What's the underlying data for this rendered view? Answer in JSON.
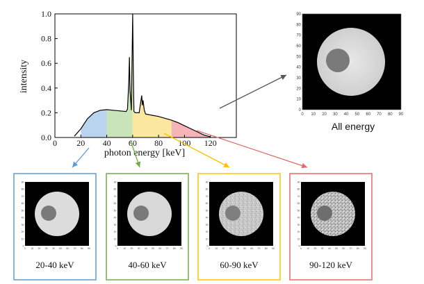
{
  "colors": {
    "band_20_40": "#b8d4ee",
    "band_40_60": "#c9e4b8",
    "band_60_90": "#fbe7a0",
    "band_90_120": "#f6b4b8",
    "box_20_40": "#5b9bd5",
    "box_40_60": "#70ad47",
    "box_60_90": "#ffc000",
    "box_90_120": "#e26a6a",
    "arrow_all": "#555555"
  },
  "chart_data": {
    "type": "area",
    "xlabel": "photon energy [keV]",
    "ylabel": "intensity",
    "xlim": [
      0,
      140
    ],
    "ylim": [
      0,
      1.0
    ],
    "xticks": [
      "0",
      "20",
      "40",
      "60",
      "80",
      "100",
      "120"
    ],
    "xtick_values": [
      0,
      20,
      40,
      60,
      80,
      100,
      120
    ],
    "yticks": [
      "0.0",
      "0.2",
      "0.4",
      "0.6",
      "0.8",
      "1.0"
    ],
    "ytick_values": [
      0,
      0.2,
      0.4,
      0.6,
      0.8,
      1.0
    ],
    "grid": false,
    "x": [
      15,
      20,
      25,
      30,
      35,
      40,
      45,
      50,
      55,
      56,
      57,
      57.5,
      58,
      59,
      59.5,
      60,
      60.5,
      61,
      62,
      65,
      66,
      67,
      67.5,
      68,
      69,
      70,
      75,
      80,
      85,
      90,
      95,
      100,
      105,
      110,
      115,
      120
    ],
    "y": [
      0.01,
      0.07,
      0.15,
      0.2,
      0.22,
      0.225,
      0.22,
      0.215,
      0.21,
      0.23,
      0.45,
      0.65,
      0.38,
      0.22,
      0.6,
      1.0,
      0.55,
      0.21,
      0.2,
      0.2,
      0.27,
      0.34,
      0.26,
      0.3,
      0.22,
      0.19,
      0.18,
      0.17,
      0.155,
      0.14,
      0.12,
      0.095,
      0.07,
      0.045,
      0.02,
      0.005
    ],
    "bands": [
      {
        "from": 20,
        "to": 40,
        "color_key": "band_20_40"
      },
      {
        "from": 40,
        "to": 60,
        "color_key": "band_40_60"
      },
      {
        "from": 60,
        "to": 90,
        "color_key": "band_60_90"
      },
      {
        "from": 90,
        "to": 120,
        "color_key": "band_90_120"
      }
    ]
  },
  "all_energy": {
    "label": "All energy",
    "ticks": [
      "0",
      "10",
      "20",
      "30",
      "40",
      "50",
      "60",
      "70",
      "80",
      "90"
    ]
  },
  "panels": [
    {
      "label": "20-40 keV",
      "color_key": "box_20_40"
    },
    {
      "label": "40-60 keV",
      "color_key": "box_40_60"
    },
    {
      "label": "60-90 keV",
      "color_key": "box_60_90"
    },
    {
      "label": "90-120 keV",
      "color_key": "box_90_120"
    }
  ]
}
